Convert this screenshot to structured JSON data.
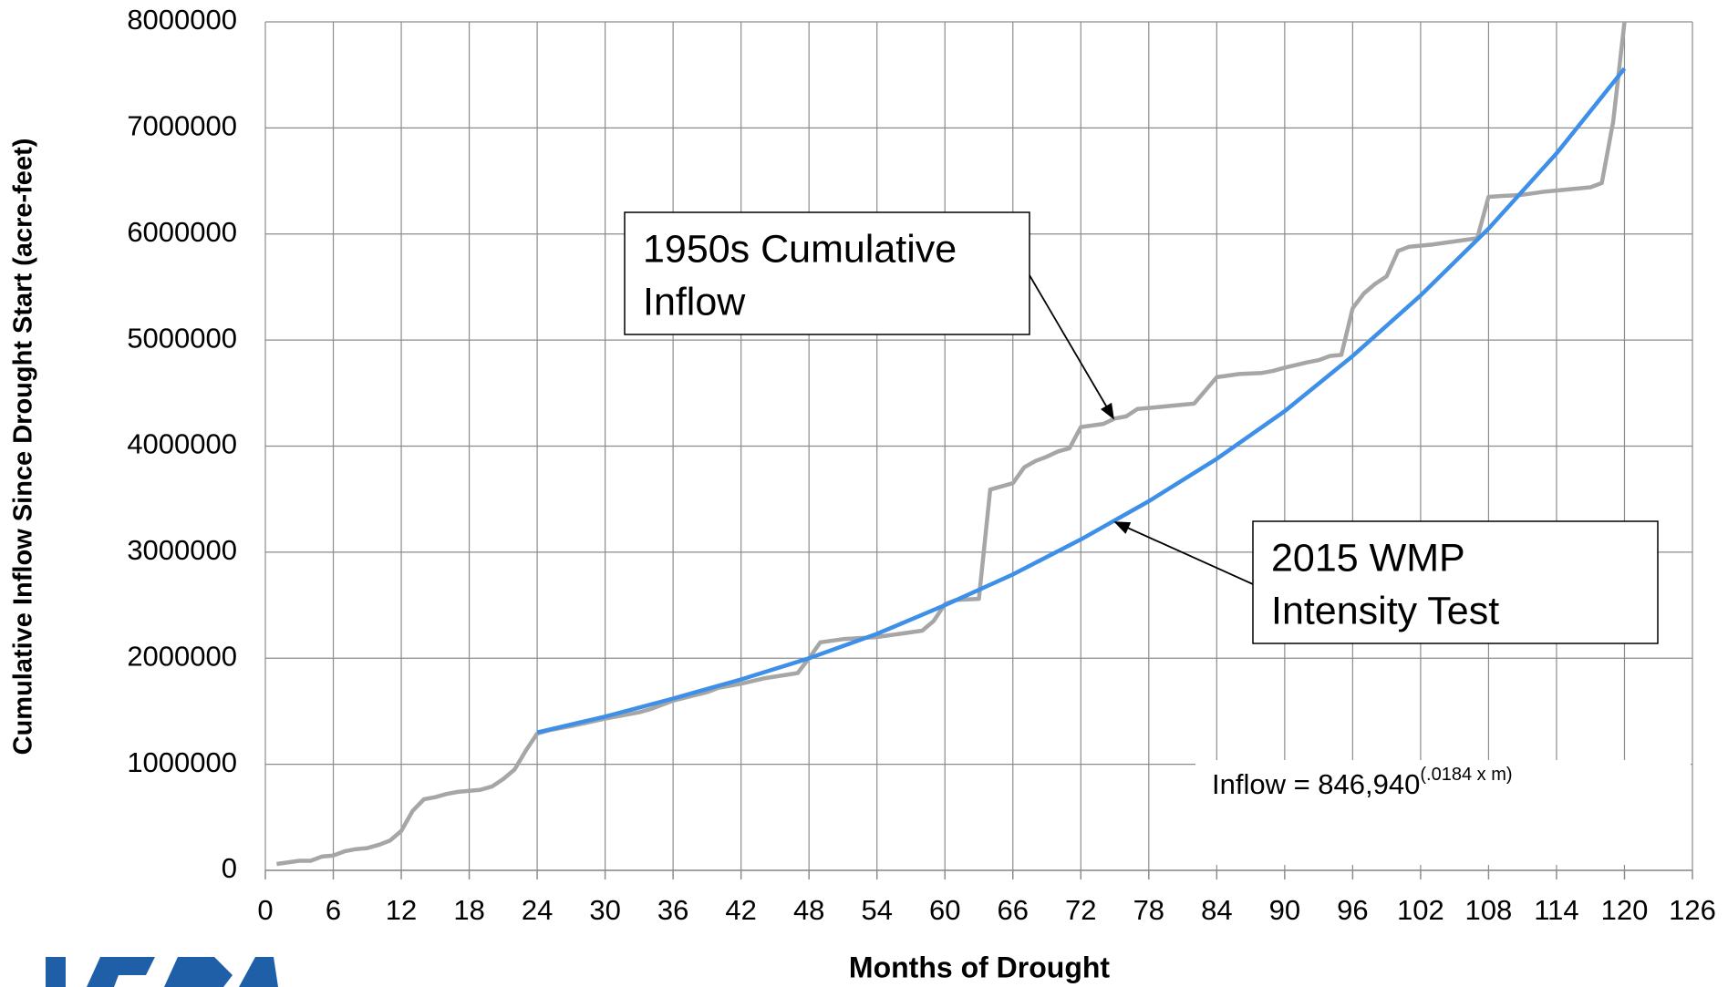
{
  "chart_data": {
    "type": "line",
    "xlabel": "Months of Drought",
    "ylabel": "Cumulative Inflow Since Drought Start (acre-feet)",
    "xlim": [
      0,
      126
    ],
    "xticks": [
      0,
      6,
      12,
      18,
      24,
      30,
      36,
      42,
      48,
      54,
      60,
      66,
      72,
      78,
      84,
      90,
      96,
      102,
      108,
      114,
      120,
      126
    ],
    "ylim": [
      0,
      8000000
    ],
    "yticks": [
      0,
      1000000,
      2000000,
      3000000,
      4000000,
      5000000,
      6000000,
      7000000,
      8000000
    ],
    "grid": true,
    "series": [
      {
        "color": "#a6a6a6",
        "x": [
          1,
          3,
          4,
          5,
          6,
          7,
          8,
          9,
          10,
          11,
          12,
          13,
          14,
          15,
          16,
          17,
          18,
          19,
          20,
          21,
          22,
          23,
          24,
          25,
          27,
          30,
          33,
          34,
          36,
          39,
          40,
          42,
          44,
          47,
          48,
          49,
          51,
          54,
          56,
          58,
          59,
          60,
          61,
          63,
          64,
          66,
          67,
          68,
          69,
          70,
          71,
          72,
          74,
          75,
          76,
          77,
          80,
          82,
          84,
          86,
          88,
          89,
          90,
          92,
          93,
          94,
          95,
          96,
          97,
          98,
          99,
          100,
          101,
          103,
          105,
          107,
          108,
          111,
          113,
          115,
          117,
          118,
          119,
          120
        ],
        "values": [
          60000,
          90000,
          90000,
          130000,
          140000,
          180000,
          200000,
          210000,
          240000,
          280000,
          370000,
          560000,
          670000,
          690000,
          720000,
          740000,
          750000,
          760000,
          790000,
          860000,
          950000,
          1130000,
          1290000,
          1320000,
          1360000,
          1430000,
          1490000,
          1520000,
          1600000,
          1680000,
          1720000,
          1760000,
          1810000,
          1860000,
          2000000,
          2150000,
          2180000,
          2200000,
          2230000,
          2260000,
          2350000,
          2510000,
          2550000,
          2560000,
          3590000,
          3650000,
          3800000,
          3860000,
          3900000,
          3950000,
          3980000,
          4180000,
          4210000,
          4260000,
          4280000,
          4350000,
          4380000,
          4400000,
          4650000,
          4680000,
          4690000,
          4710000,
          4740000,
          4790000,
          4810000,
          4850000,
          4860000,
          5300000,
          5440000,
          5530000,
          5600000,
          5840000,
          5880000,
          5900000,
          5930000,
          5960000,
          6350000,
          6370000,
          6400000,
          6420000,
          6440000,
          6480000,
          7060000,
          8000000
        ]
      },
      {
        "color": "#3d8fe8",
        "x": [
          24,
          30,
          36,
          42,
          48,
          54,
          60,
          66,
          72,
          78,
          84,
          90,
          96,
          102,
          108,
          114,
          120
        ],
        "values": [
          1300000,
          1450000,
          1620000,
          1800000,
          2000000,
          2230000,
          2500000,
          2790000,
          3120000,
          3480000,
          3880000,
          4330000,
          4850000,
          5420000,
          6050000,
          6760000,
          7560000
        ]
      }
    ],
    "annotations": [
      {
        "lines": [
          "1950s Cumulative",
          "Inflow"
        ]
      },
      {
        "lines": [
          "2015 WMP",
          "Intensity Test"
        ]
      }
    ],
    "equation": {
      "text": "Inflow = 846,940",
      "superscript": "(.0184 x m)"
    }
  }
}
